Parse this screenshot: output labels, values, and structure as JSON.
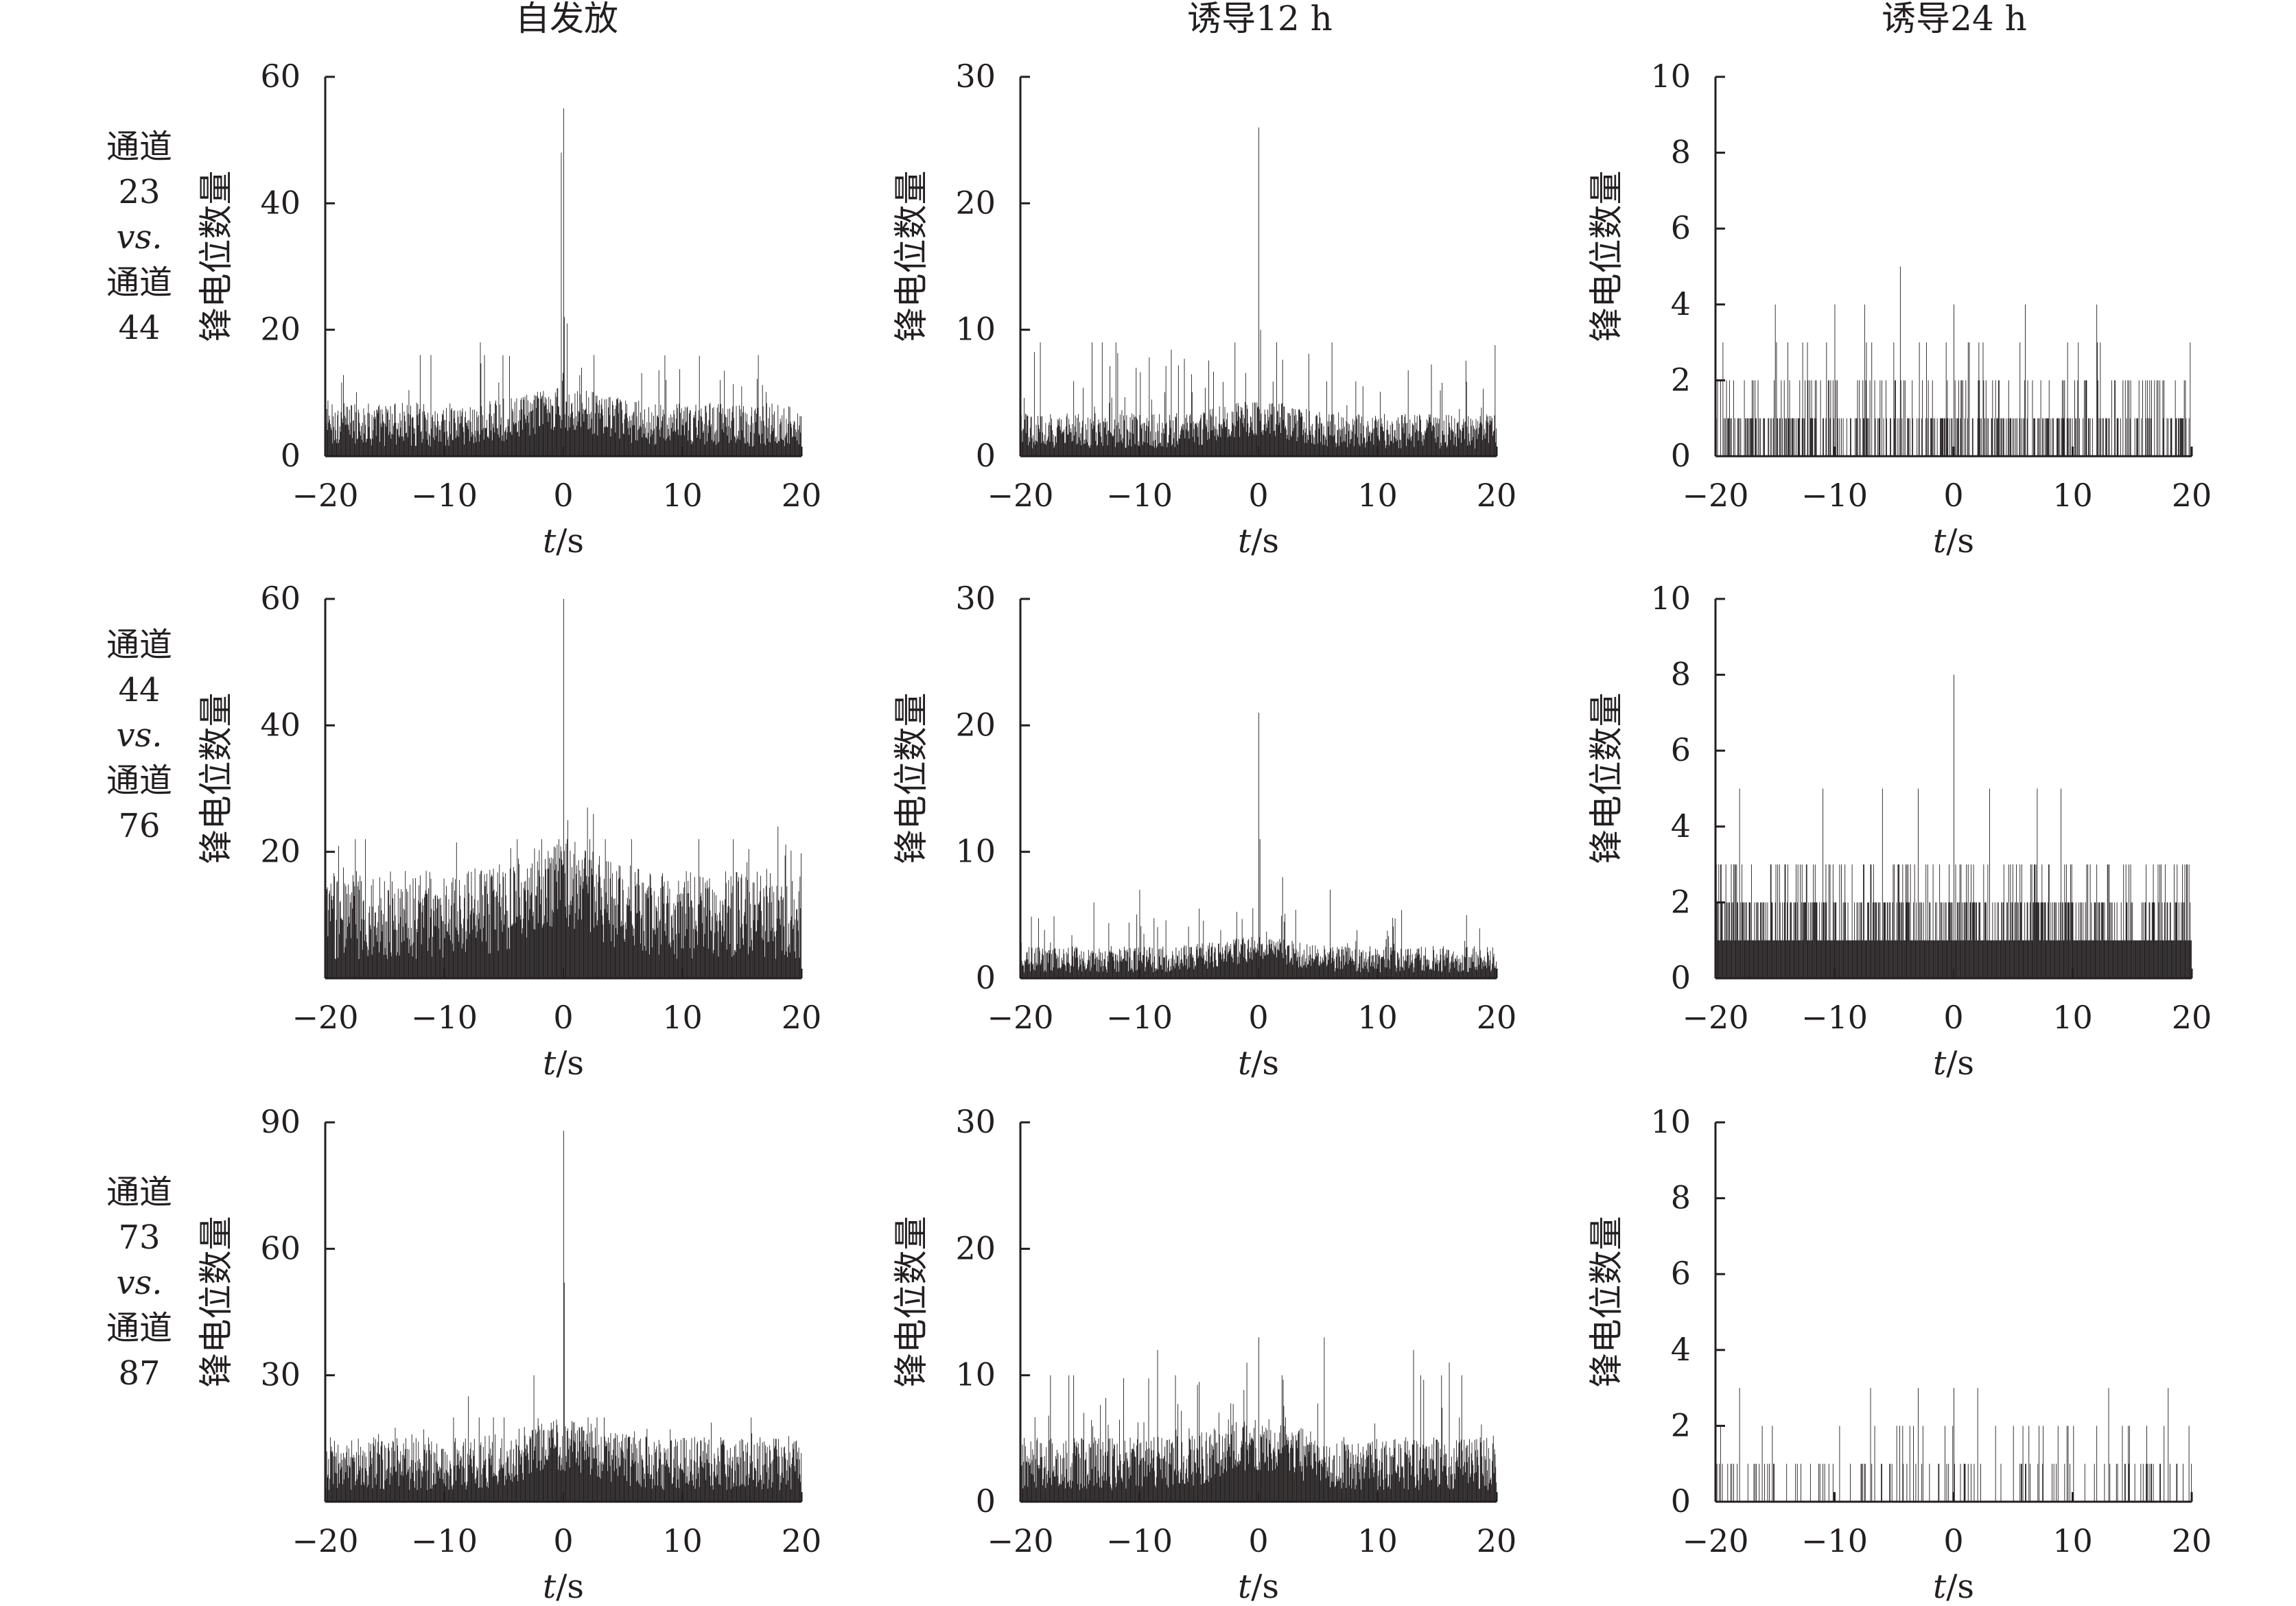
{
  "figure": {
    "column_titles": [
      "自发放",
      "诱导12 h",
      "诱导24 h"
    ],
    "row_labels": [
      [
        "通道",
        "23",
        "vs.",
        "通道",
        "44"
      ],
      [
        "通道",
        "44",
        "vs.",
        "通道",
        "76"
      ],
      [
        "通道",
        "73",
        "vs.",
        "通道",
        "87"
      ]
    ]
  },
  "chart_data": [
    {
      "type": "bar",
      "row": 0,
      "col": 0,
      "title": "自发放",
      "xlabel_italic": "t",
      "xlabel_rest": "/s",
      "ylabel": "锋电位数量",
      "xlim": [
        -20,
        20
      ],
      "xticks": [
        "−20",
        "−10",
        "0",
        "10",
        "20"
      ],
      "ylim": [
        0,
        60
      ],
      "yticks": [
        0,
        20,
        40,
        60
      ],
      "ytick_labels": [
        "0",
        "20",
        "40",
        "60"
      ],
      "baseline_mean": 5,
      "baseline_max": 16,
      "center_peak": 55,
      "secondary_peaks": [
        [
          -0.2,
          48
        ],
        [
          0.05,
          22
        ],
        [
          0.3,
          21
        ],
        [
          1.5,
          14
        ],
        [
          -7,
          18
        ]
      ]
    },
    {
      "type": "bar",
      "row": 0,
      "col": 1,
      "title": "诱导12 h",
      "xlabel_italic": "t",
      "xlabel_rest": "/s",
      "ylabel": "锋电位数量",
      "xlim": [
        -20,
        20
      ],
      "xticks": [
        "−20",
        "−10",
        "0",
        "10",
        "20"
      ],
      "ylim": [
        0,
        30
      ],
      "yticks": [
        0,
        10,
        20,
        30
      ],
      "ytick_labels": [
        "0",
        "10",
        "20",
        "30"
      ],
      "baseline_mean": 2,
      "baseline_max": 9,
      "center_peak": 26,
      "secondary_peaks": [
        [
          0.2,
          10
        ],
        [
          1.5,
          9
        ],
        [
          -12,
          9
        ],
        [
          -2,
          9
        ]
      ]
    },
    {
      "type": "bar",
      "row": 0,
      "col": 2,
      "title": "诱导24 h",
      "xlabel_italic": "t",
      "xlabel_rest": "/s",
      "ylabel": "锋电位数量",
      "xlim": [
        -20,
        20
      ],
      "xticks": [
        "−20",
        "−10",
        "0",
        "10",
        "20"
      ],
      "ylim": [
        0,
        10
      ],
      "yticks": [
        0,
        2,
        4,
        6,
        8,
        10
      ],
      "ytick_labels": [
        "0",
        "2",
        "4",
        "6",
        "8",
        "10"
      ],
      "baseline_mean": 1,
      "baseline_max": 3,
      "center_peak": 4,
      "secondary_peaks": [
        [
          -4.5,
          5
        ],
        [
          -15,
          4
        ],
        [
          -10,
          4
        ],
        [
          -7.5,
          4
        ],
        [
          6,
          4
        ],
        [
          12,
          4
        ]
      ]
    },
    {
      "type": "bar",
      "row": 1,
      "col": 0,
      "title": "自发放",
      "xlabel_italic": "t",
      "xlabel_rest": "/s",
      "ylabel": "锋电位数量",
      "xlim": [
        -20,
        20
      ],
      "xticks": [
        "−20",
        "−10",
        "0",
        "10",
        "20"
      ],
      "ylim": [
        0,
        60
      ],
      "yticks": [
        20,
        40,
        60
      ],
      "ytick_labels": [
        "20",
        "40",
        "60"
      ],
      "baseline_mean": 10,
      "baseline_max": 22,
      "center_peak": 60,
      "secondary_peaks": [
        [
          2,
          27
        ],
        [
          2.5,
          26
        ],
        [
          0.4,
          25
        ],
        [
          18,
          24
        ]
      ]
    },
    {
      "type": "bar",
      "row": 1,
      "col": 1,
      "title": "诱导12 h",
      "xlabel_italic": "t",
      "xlabel_rest": "/s",
      "ylabel": "锋电位数量",
      "xlim": [
        -20,
        20
      ],
      "xticks": [
        "−20",
        "−10",
        "0",
        "10",
        "20"
      ],
      "ylim": [
        0,
        30
      ],
      "yticks": [
        0,
        10,
        20,
        30
      ],
      "ytick_labels": [
        "0",
        "10",
        "20",
        "30"
      ],
      "baseline_mean": 1.5,
      "baseline_max": 6,
      "center_peak": 21,
      "secondary_peaks": [
        [
          0.1,
          11
        ],
        [
          -10,
          7
        ],
        [
          2,
          8
        ],
        [
          6,
          7
        ]
      ]
    },
    {
      "type": "bar",
      "row": 1,
      "col": 2,
      "title": "诱导24 h",
      "xlabel_italic": "t",
      "xlabel_rest": "/s",
      "ylabel": "锋电位数量",
      "xlim": [
        -20,
        20
      ],
      "xticks": [
        "−20",
        "−10",
        "0",
        "10",
        "20"
      ],
      "ylim": [
        0,
        10
      ],
      "yticks": [
        0,
        2,
        4,
        6,
        8,
        10
      ],
      "ytick_labels": [
        "0",
        "2",
        "4",
        "6",
        "8",
        "10"
      ],
      "baseline_mean": 1.5,
      "baseline_max": 3,
      "center_peak": 8,
      "secondary_peaks": [
        [
          -18,
          5
        ],
        [
          -11,
          5
        ],
        [
          -3,
          5
        ],
        [
          3,
          5
        ],
        [
          7,
          5
        ],
        [
          9,
          5
        ],
        [
          -6,
          5
        ]
      ]
    },
    {
      "type": "bar",
      "row": 2,
      "col": 0,
      "title": "自发放",
      "xlabel_italic": "t",
      "xlabel_rest": "/s",
      "ylabel": "锋电位数量",
      "xlim": [
        -20,
        20
      ],
      "xticks": [
        "−20",
        "−10",
        "0",
        "10",
        "20"
      ],
      "ylim": [
        0,
        90
      ],
      "yticks": [
        30,
        60,
        90
      ],
      "ytick_labels": [
        "30",
        "60",
        "90"
      ],
      "baseline_mean": 9,
      "baseline_max": 20,
      "center_peak": 88,
      "secondary_peaks": [
        [
          0.05,
          52
        ],
        [
          -2.5,
          30
        ],
        [
          -8,
          25
        ]
      ]
    },
    {
      "type": "bar",
      "row": 2,
      "col": 1,
      "title": "诱导12 h",
      "xlabel_italic": "t",
      "xlabel_rest": "/s",
      "ylabel": "锋电位数量",
      "xlim": [
        -20,
        20
      ],
      "xticks": [
        "−20",
        "−10",
        "0",
        "10",
        "20"
      ],
      "ylim": [
        0,
        30
      ],
      "yticks": [
        0,
        10,
        20,
        30
      ],
      "ytick_labels": [
        "0",
        "10",
        "20",
        "30"
      ],
      "baseline_mean": 3,
      "baseline_max": 10,
      "center_peak": 13,
      "secondary_peaks": [
        [
          -8.5,
          12
        ],
        [
          5.5,
          13
        ],
        [
          13,
          12
        ],
        [
          16,
          11
        ],
        [
          -1,
          11
        ]
      ]
    },
    {
      "type": "bar",
      "row": 2,
      "col": 2,
      "title": "诱导24 h",
      "xlabel_italic": "t",
      "xlabel_rest": "/s",
      "ylabel": "锋电位数量",
      "xlim": [
        -20,
        20
      ],
      "xticks": [
        "−20",
        "−10",
        "0",
        "10",
        "20"
      ],
      "ylim": [
        0,
        10
      ],
      "yticks": [
        0,
        2,
        4,
        6,
        8,
        10
      ],
      "ytick_labels": [
        "0",
        "2",
        "4",
        "6",
        "8",
        "10"
      ],
      "baseline_mean": 0.4,
      "baseline_max": 2,
      "center_peak": 3,
      "secondary_peaks": [
        [
          -20,
          3
        ],
        [
          -18,
          3
        ],
        [
          -7,
          3
        ],
        [
          -3,
          3
        ],
        [
          0,
          3
        ],
        [
          2,
          3
        ],
        [
          13,
          3
        ],
        [
          18,
          3
        ]
      ]
    }
  ]
}
